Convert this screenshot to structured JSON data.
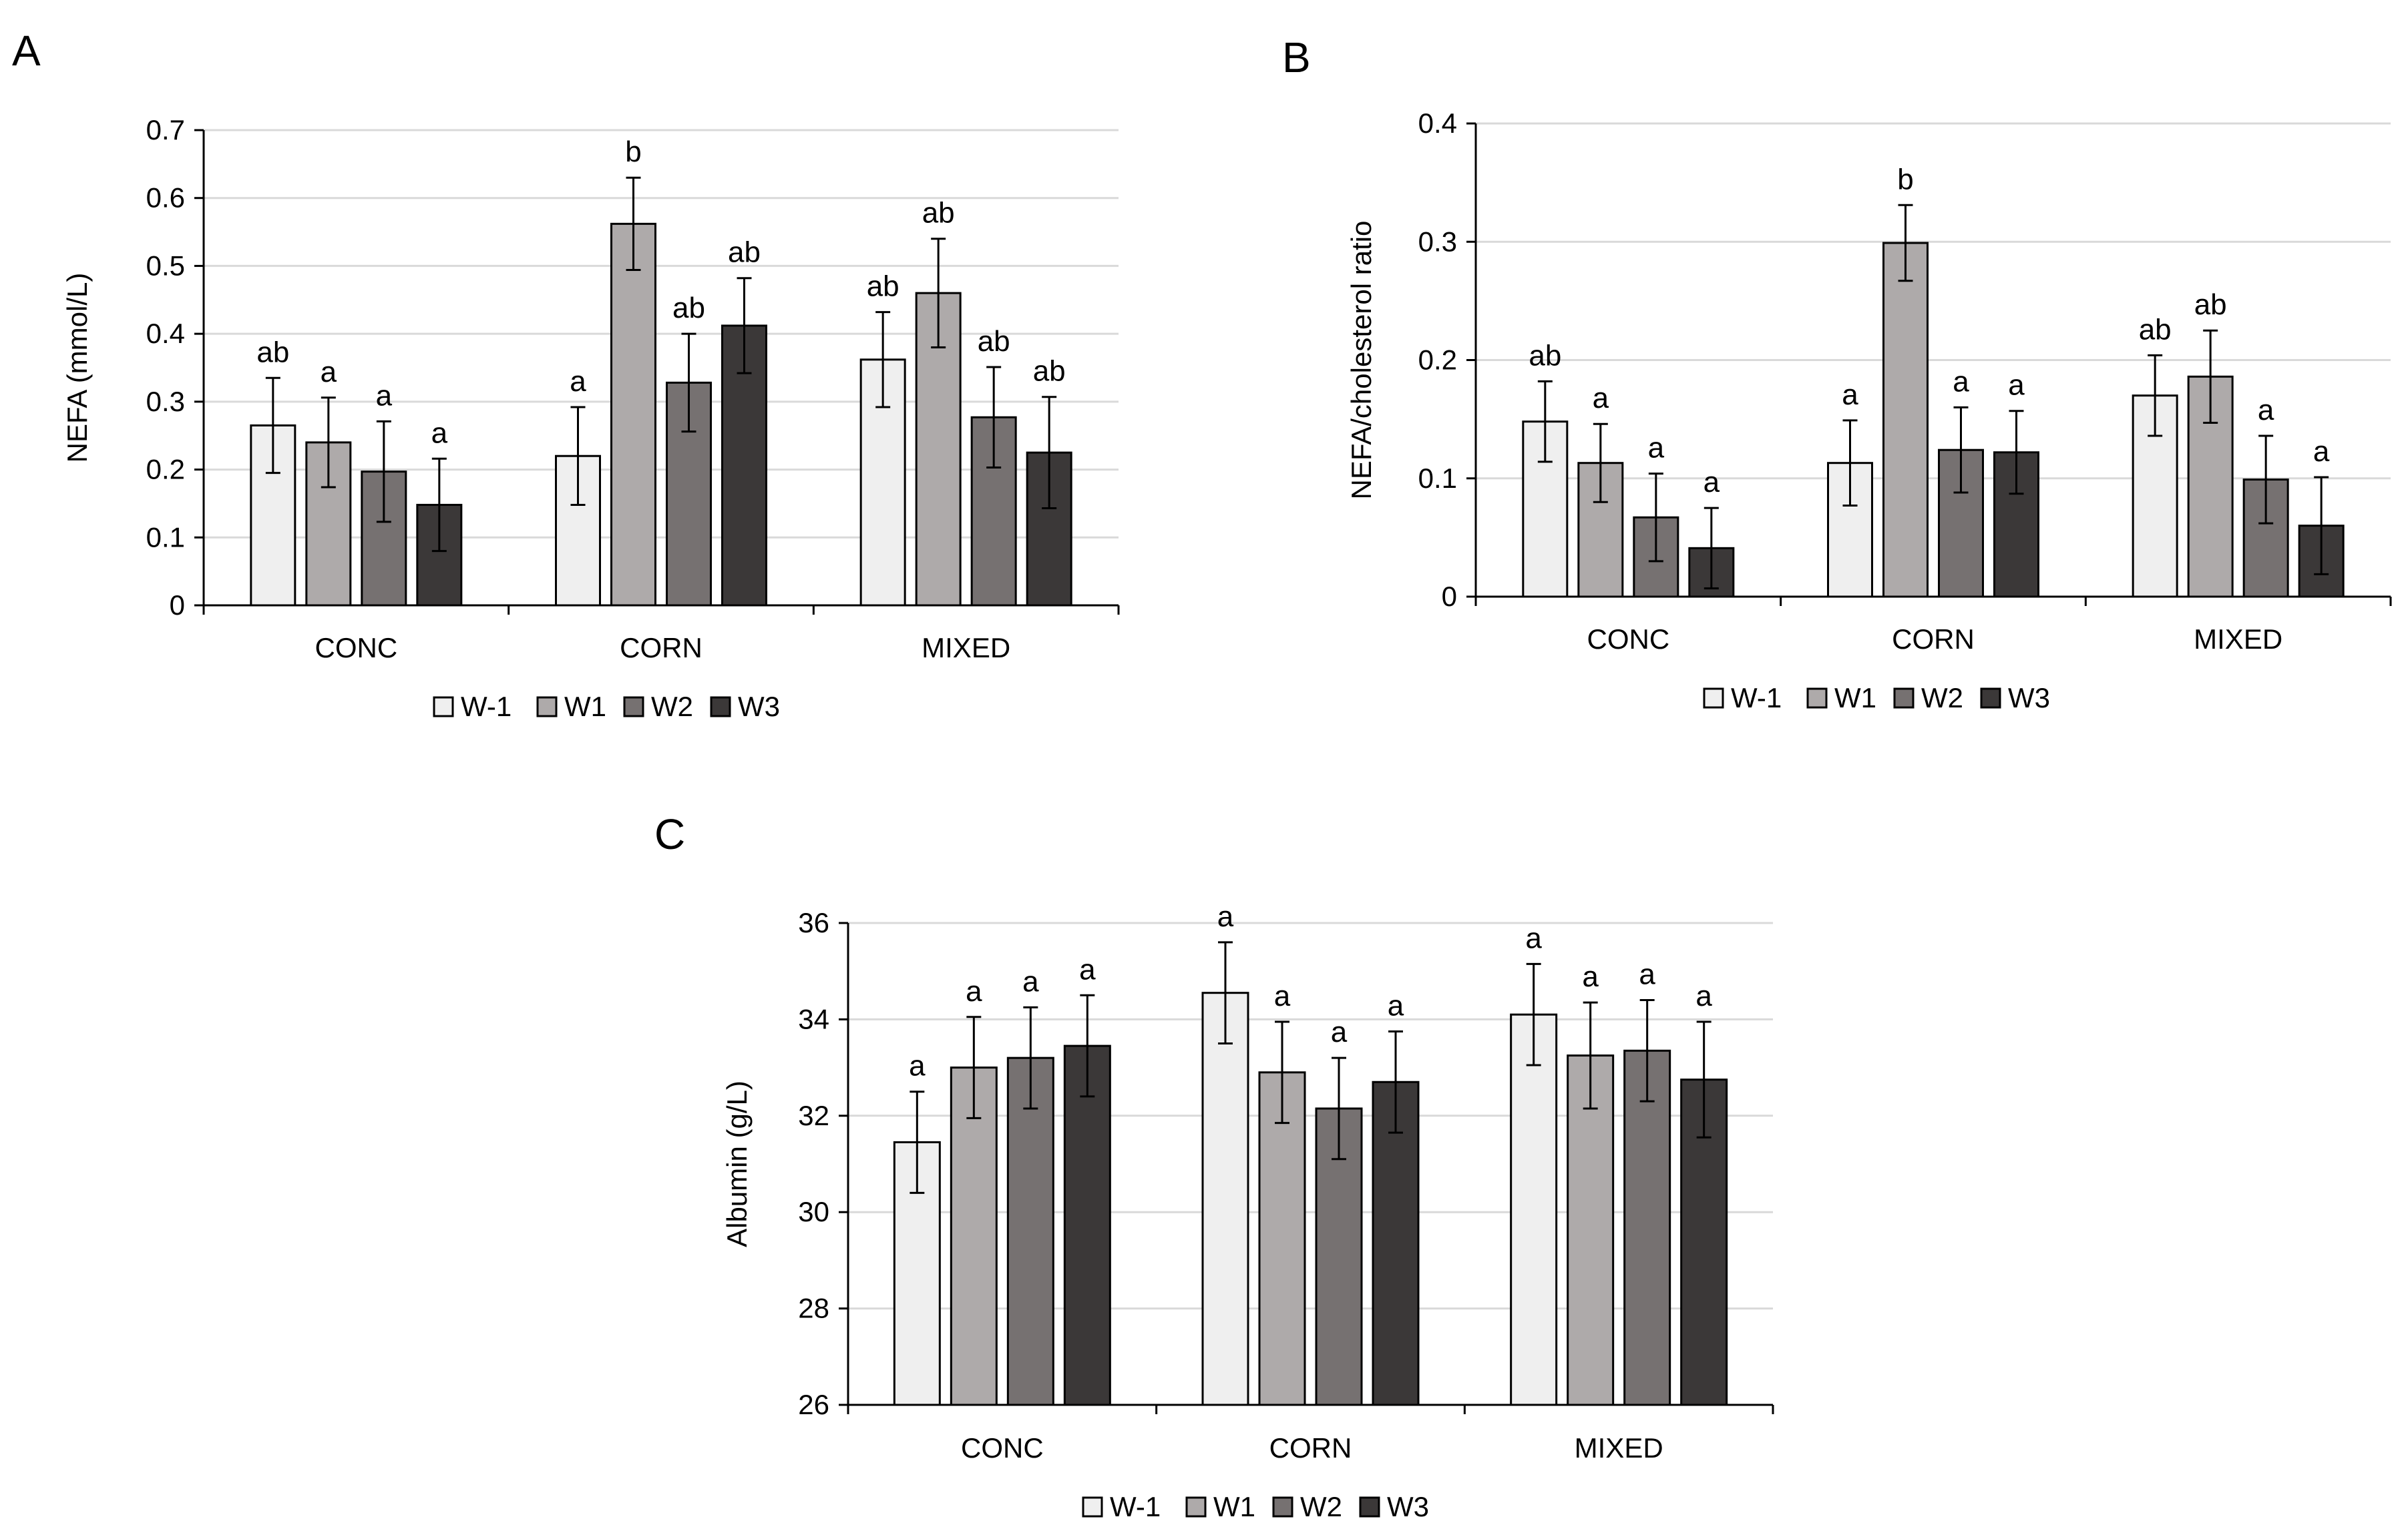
{
  "chart_data": [
    {
      "type": "bar",
      "panel": "A",
      "categories": [
        "CONC",
        "CORN",
        "MIXED"
      ],
      "ylabel": "NEFA (mmol/L)",
      "ylim": [
        0,
        0.7
      ],
      "yticks": [
        "0",
        "0.1",
        "0.2",
        "0.3",
        "0.4",
        "0.5",
        "0.6",
        "0.7"
      ],
      "grid": true,
      "legend_position": "bottom",
      "series": [
        {
          "name": "W-1",
          "color": "#efefef",
          "values": [
            0.265,
            0.22,
            0.362
          ],
          "errors": [
            0.07,
            0.072,
            0.07
          ],
          "labels": [
            "ab",
            "a",
            "ab"
          ]
        },
        {
          "name": "W1",
          "color": "#aeaaaa",
          "values": [
            0.24,
            0.562,
            0.46
          ],
          "errors": [
            0.066,
            0.068,
            0.08
          ],
          "labels": [
            "a",
            "b",
            "ab"
          ]
        },
        {
          "name": "W2",
          "color": "#767171",
          "values": [
            0.197,
            0.328,
            0.277
          ],
          "errors": [
            0.074,
            0.072,
            0.074
          ],
          "labels": [
            "a",
            "ab",
            "ab"
          ]
        },
        {
          "name": "W3",
          "color": "#3b3838",
          "values": [
            0.148,
            0.412,
            0.225
          ],
          "errors": [
            0.068,
            0.07,
            0.082
          ],
          "labels": [
            "a",
            "ab",
            "ab"
          ]
        }
      ]
    },
    {
      "type": "bar",
      "panel": "B",
      "categories": [
        "CONC",
        "CORN",
        "MIXED"
      ],
      "ylabel": "NEFA/cholesterol ratio",
      "ylim": [
        0,
        0.4
      ],
      "yticks": [
        "0",
        "0.1",
        "0.2",
        "0.3",
        "0.4"
      ],
      "grid": true,
      "legend_position": "bottom",
      "series": [
        {
          "name": "W-1",
          "color": "#efefef",
          "values": [
            0.148,
            0.113,
            0.17
          ],
          "errors": [
            0.034,
            0.036,
            0.034
          ],
          "labels": [
            "ab",
            "a",
            "ab"
          ]
        },
        {
          "name": "W1",
          "color": "#aeaaaa",
          "values": [
            0.113,
            0.299,
            0.186
          ],
          "errors": [
            0.033,
            0.032,
            0.039
          ],
          "labels": [
            "a",
            "b",
            "ab"
          ]
        },
        {
          "name": "W2",
          "color": "#767171",
          "values": [
            0.067,
            0.124,
            0.099
          ],
          "errors": [
            0.037,
            0.036,
            0.037
          ],
          "labels": [
            "a",
            "a",
            "a"
          ]
        },
        {
          "name": "W3",
          "color": "#3b3838",
          "values": [
            0.041,
            0.122,
            0.06
          ],
          "errors": [
            0.034,
            0.035,
            0.041
          ],
          "labels": [
            "a",
            "a",
            "a"
          ]
        }
      ]
    },
    {
      "type": "bar",
      "panel": "C",
      "categories": [
        "CONC",
        "CORN",
        "MIXED"
      ],
      "ylabel": "Albumin  (g/L)",
      "ylim": [
        26,
        36
      ],
      "yticks": [
        "26",
        "28",
        "30",
        "32",
        "34",
        "36"
      ],
      "grid": true,
      "legend_position": "bottom",
      "series": [
        {
          "name": "W-1",
          "color": "#efefef",
          "values": [
            31.45,
            34.55,
            34.1
          ],
          "errors": [
            1.05,
            1.05,
            1.05
          ],
          "labels": [
            "a",
            "a",
            "a"
          ]
        },
        {
          "name": "W1",
          "color": "#aeaaaa",
          "values": [
            33.0,
            32.9,
            33.25
          ],
          "errors": [
            1.05,
            1.05,
            1.1
          ],
          "labels": [
            "a",
            "a",
            "a"
          ]
        },
        {
          "name": "W2",
          "color": "#767171",
          "values": [
            33.2,
            32.15,
            33.35
          ],
          "errors": [
            1.05,
            1.05,
            1.05
          ],
          "labels": [
            "a",
            "a",
            "a"
          ]
        },
        {
          "name": "W3",
          "color": "#3b3838",
          "values": [
            33.45,
            32.7,
            32.75
          ],
          "errors": [
            1.05,
            1.05,
            1.2
          ],
          "labels": [
            "a",
            "a",
            "a"
          ]
        }
      ]
    }
  ]
}
